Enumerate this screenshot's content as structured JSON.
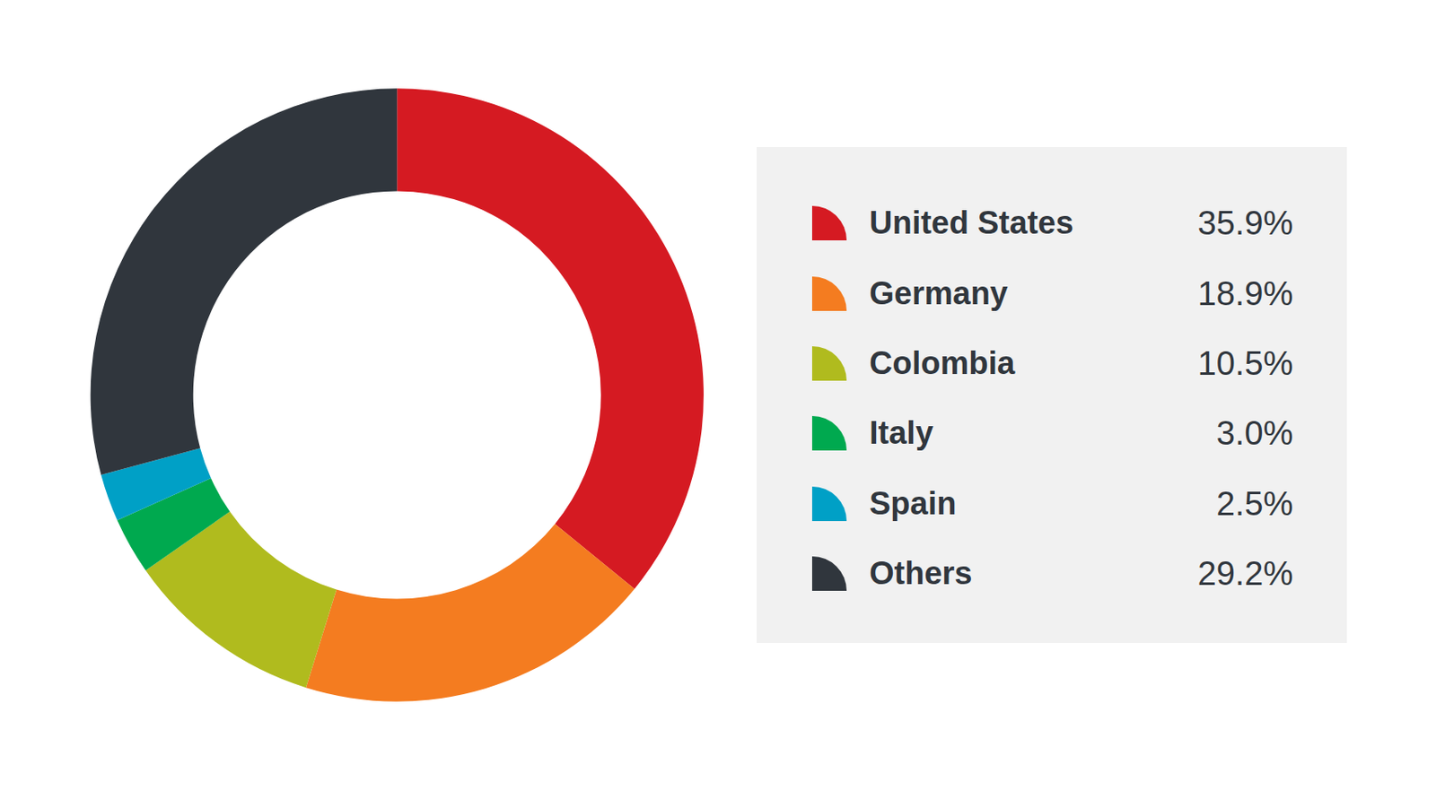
{
  "chart_data": {
    "type": "pie",
    "categories": [
      "United States",
      "Germany",
      "Colombia",
      "Italy",
      "Spain",
      "Others"
    ],
    "values": [
      35.9,
      18.9,
      10.5,
      3.0,
      2.5,
      29.2
    ],
    "value_labels": [
      "35.9%",
      "18.9%",
      "10.5%",
      "3.0%",
      "2.5%",
      "29.2%"
    ],
    "colors": [
      "#d51a22",
      "#f47c20",
      "#b0bb1e",
      "#00a94f",
      "#00a0c6",
      "#30363d"
    ]
  }
}
